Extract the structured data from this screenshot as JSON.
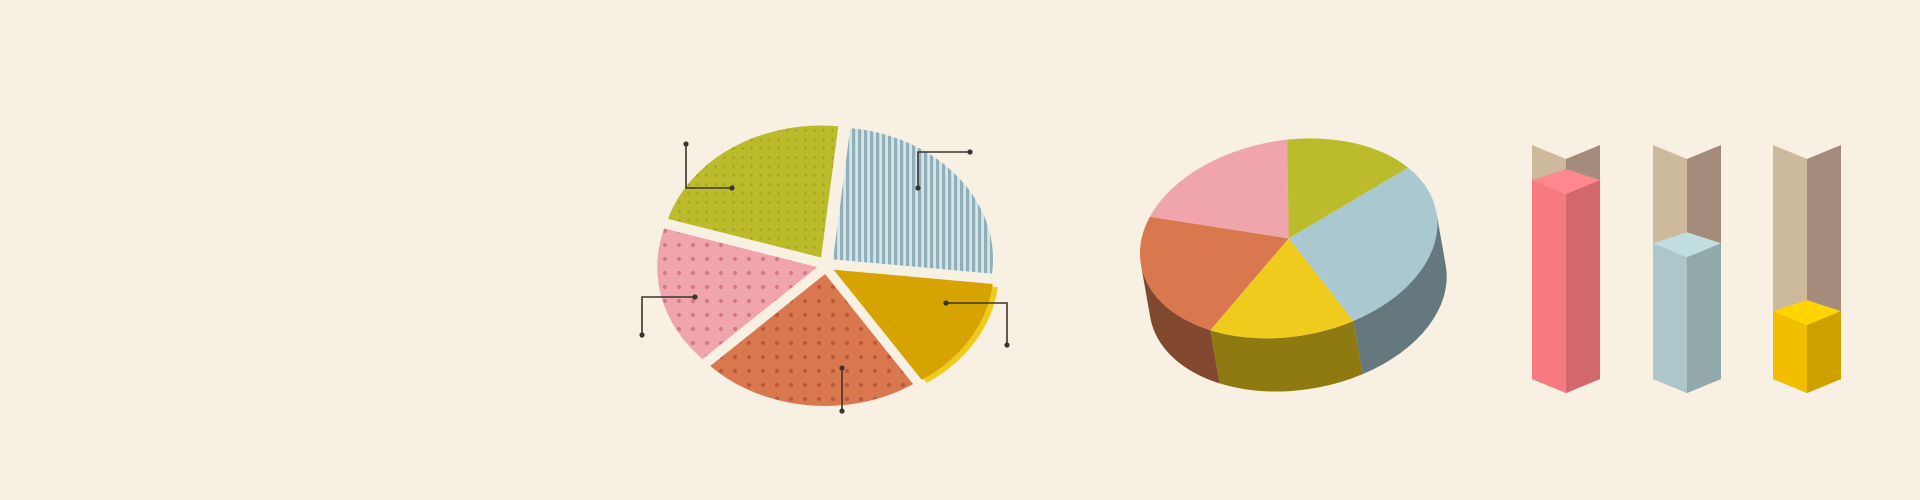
{
  "palette": {
    "background": "#f8f0e2",
    "olive": "#bcbb2c",
    "blue": "#a9c8d0",
    "mustard": "#d6a300",
    "mustard_edge": "#eecb1c",
    "coral": "#d9774e",
    "pink": "#f0a5ac",
    "leader": "#3b3430"
  },
  "chart_data": [
    {
      "type": "pie",
      "style": "exploded, patterned fills with leader lines",
      "slices": [
        {
          "name": "",
          "value": 22,
          "color": "#bcbb2c",
          "pattern": "dots"
        },
        {
          "name": "",
          "value": 25,
          "color": "#a9c8d0",
          "pattern": "stripes"
        },
        {
          "name": "",
          "value": 14,
          "color": "#d6a300",
          "pattern": "solid"
        },
        {
          "name": "",
          "value": 22,
          "color": "#d9774e",
          "pattern": "dots"
        },
        {
          "name": "",
          "value": 17,
          "color": "#f0a5ac",
          "pattern": "dots"
        }
      ]
    },
    {
      "type": "pie",
      "style": "3d",
      "slices": [
        {
          "name": "",
          "value": 28,
          "color": "#a9c8d0"
        },
        {
          "name": "",
          "value": 16,
          "color": "#eecb1c"
        },
        {
          "name": "",
          "value": 22,
          "color": "#d9774e"
        },
        {
          "name": "",
          "value": 19,
          "color": "#f0a5ac"
        },
        {
          "name": "",
          "value": 15,
          "color": "#bcbb2c"
        }
      ]
    },
    {
      "type": "bar",
      "style": "3d isometric columns",
      "ylim": [
        0,
        100
      ],
      "categories": [
        "",
        "",
        ""
      ],
      "series": [
        {
          "name": "",
          "values": [
            85,
            58,
            29
          ],
          "colors": [
            "#e9727a",
            "#a3bbbe",
            "#e4b400"
          ]
        }
      ]
    }
  ]
}
